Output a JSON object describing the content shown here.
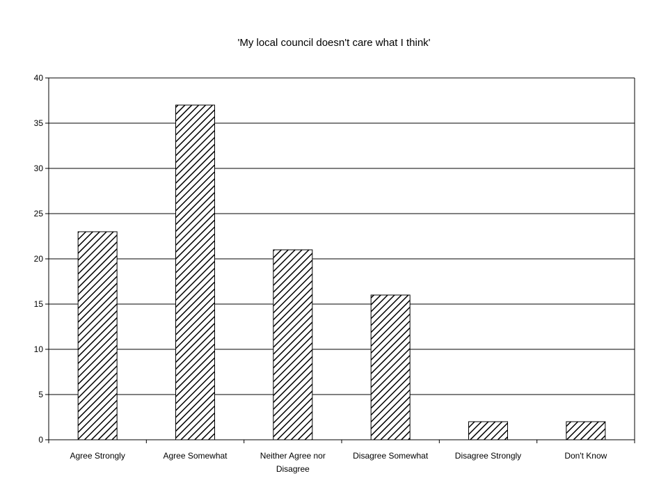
{
  "chart_data": {
    "type": "bar",
    "title": "'My local council doesn't care what I think'",
    "xlabel": "",
    "ylabel": "",
    "categories": [
      "Agree Strongly",
      "Agree Somewhat",
      "Neither Agree nor Disagree",
      "Disagree Somewhat",
      "Disagree Strongly",
      "Don't Know"
    ],
    "category_label_lines": [
      [
        "Agree Strongly"
      ],
      [
        "Agree Somewhat"
      ],
      [
        "Neither Agree nor",
        "Disagree"
      ],
      [
        "Disagree Somewhat"
      ],
      [
        "Disagree Strongly"
      ],
      [
        "Don't Know"
      ]
    ],
    "values": [
      23,
      37,
      21,
      16,
      2,
      2
    ],
    "ylim": [
      0,
      40
    ],
    "yticks": [
      0,
      5,
      10,
      15,
      20,
      25,
      30,
      35,
      40
    ],
    "grid": true,
    "legend": "none",
    "bar_fill": "diagonal-hatch",
    "colors": {
      "bar_stroke": "#000000",
      "hatch": "#000000",
      "background": "#ffffff",
      "grid": "#000000"
    }
  }
}
